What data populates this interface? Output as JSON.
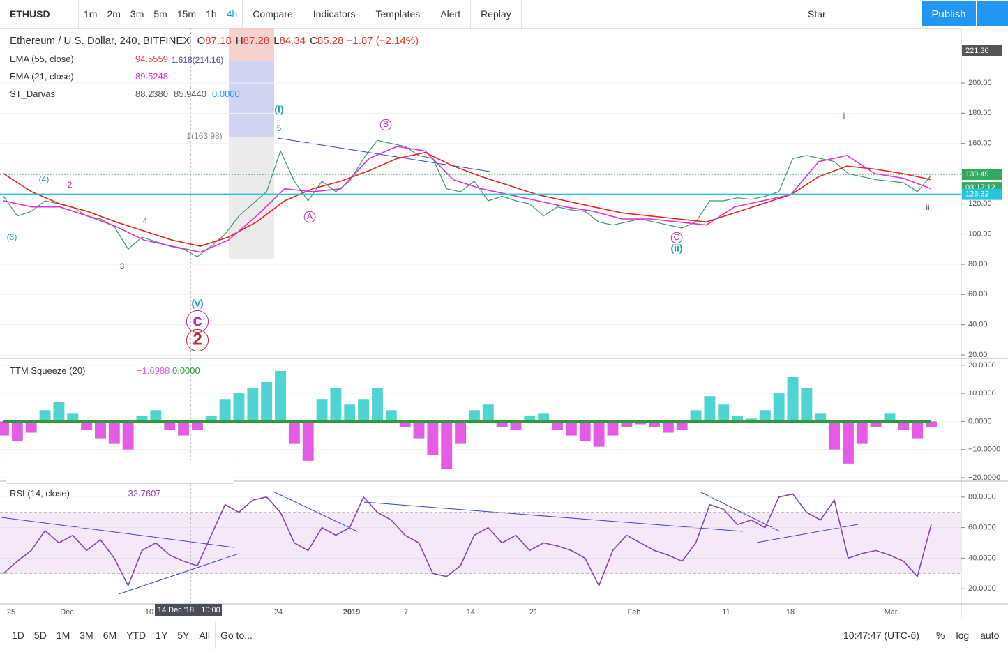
{
  "toolbar": {
    "symbol": "ETHUSD",
    "intervals": [
      "1m",
      "2m",
      "3m",
      "5m",
      "15m",
      "1h",
      "4h"
    ],
    "buttons": [
      "Compare",
      "Indicators",
      "Templates",
      "Alert",
      "Replay"
    ],
    "star": "Star",
    "publish": "Publish"
  },
  "legend": {
    "title": "Ethereum / U.S. Dollar, 240, BITFINEX",
    "ohlc": [
      {
        "k": "O",
        "v": "87.18"
      },
      {
        "k": "H",
        "v": "87.28"
      },
      {
        "k": "L",
        "v": "84.34"
      },
      {
        "k": "C",
        "v": "85.28"
      }
    ],
    "change": "−1.87 (−2.14%)",
    "studies": [
      {
        "name": "EMA (55, close)",
        "values": [
          "94.5559"
        ]
      },
      {
        "name": "EMA (21, close)",
        "values": [
          "89.5248"
        ]
      },
      {
        "name": "ST_Darvas",
        "values": [
          "88.2380",
          "85.9440",
          "0.0000"
        ]
      }
    ]
  },
  "chart_data": [
    {
      "type": "line",
      "ylim": [
        18.15,
        236.46
      ],
      "yticks": [
        {
          "value": 200,
          "label": "200.00"
        },
        {
          "value": 180,
          "label": "180.00"
        },
        {
          "value": 160,
          "label": "160.00"
        },
        {
          "value": 140,
          "label": "140.00"
        },
        {
          "value": 120,
          "label": "120.00"
        },
        {
          "value": 100,
          "label": "100.00"
        },
        {
          "value": 80,
          "label": "80.00"
        },
        {
          "value": 60,
          "label": "60.00"
        },
        {
          "value": 40,
          "label": "40.00"
        },
        {
          "value": 20,
          "label": "20.00"
        }
      ],
      "series": [
        {
          "name": "ETHUSD",
          "color": "#3a9a6a",
          "values": [
            125,
            112,
            115,
            122,
            120,
            118,
            112,
            110,
            105,
            90,
            98,
            95,
            92,
            90,
            85,
            92,
            100,
            112,
            120,
            128,
            155,
            135,
            122,
            135,
            128,
            135,
            150,
            162,
            160,
            158,
            152,
            150,
            130,
            128,
            135,
            122,
            125,
            122,
            120,
            112,
            118,
            116,
            115,
            108,
            106,
            108,
            110,
            108,
            106,
            104,
            108,
            122,
            122,
            124,
            123,
            125,
            128,
            150,
            152,
            150,
            148,
            140,
            138,
            136,
            135,
            134,
            128,
            139
          ]
        },
        {
          "name": "EMA (55, close)",
          "color": "#e8221c",
          "values": [
            140,
            128,
            120,
            115,
            108,
            102,
            96,
            92,
            98,
            108,
            122,
            130,
            135,
            142,
            150,
            154,
            145,
            138,
            132,
            126,
            122,
            118,
            114,
            112,
            110,
            108,
            114,
            120,
            126,
            138,
            145,
            143,
            140,
            136
          ]
        },
        {
          "name": "EMA (21, close)",
          "color": "#e22fd6",
          "values": [
            122,
            118,
            118,
            112,
            105,
            96,
            92,
            88,
            96,
            112,
            130,
            128,
            130,
            150,
            158,
            155,
            136,
            130,
            126,
            122,
            118,
            115,
            110,
            110,
            108,
            106,
            118,
            122,
            126,
            148,
            152,
            140,
            137,
            130
          ]
        }
      ],
      "badges": [
        {
          "value": 221.3,
          "label": "221.30",
          "color": "#555"
        },
        {
          "value": 139.49,
          "label": "139.49",
          "color": "#33a861"
        },
        {
          "label": "03:12:12",
          "color": "#33a861"
        },
        {
          "value": 126.32,
          "label": "126.32",
          "color": "#26c6da"
        }
      ],
      "annotations": [
        {
          "text": "(i)",
          "color": "#1aa3a3"
        },
        {
          "text": "5",
          "color": "#1aa3a3"
        },
        {
          "text": "B",
          "color": "#b030b0"
        },
        {
          "text": "A",
          "color": "#b030b0"
        },
        {
          "text": "i",
          "color": "#9c27b0"
        },
        {
          "text": "ii",
          "color": "#9c27b0"
        },
        {
          "text": "C",
          "color": "#b030b0"
        },
        {
          "text": "(ii)",
          "color": "#1aa3a3"
        },
        {
          "text": "(v)",
          "color": "#1aa3a3"
        },
        {
          "text": "c",
          "color": "#b030b0"
        },
        {
          "text": "2",
          "color": "#c62828"
        },
        {
          "text": "1(163.98)",
          "color": "#888"
        },
        {
          "text": "1.618(214.16)",
          "color": "#4a4aa0"
        },
        {
          "text": "(4)",
          "color": "#1aa3a3"
        },
        {
          "text": "(3)",
          "color": "#1aa3a3"
        },
        {
          "text": "3",
          "color": "#b030b0"
        },
        {
          "text": "4",
          "color": "#b030b0"
        },
        {
          "text": "2",
          "color": "#b030b0"
        }
      ]
    },
    {
      "type": "bar",
      "title": "TTM Squeeze (20)",
      "legend_values": [
        "−1.6988",
        "0.0000"
      ],
      "ylim": [
        -21,
        22.2
      ],
      "yticks": [
        {
          "value": 20,
          "label": "20.0000"
        },
        {
          "value": 10,
          "label": "10.0000"
        },
        {
          "value": 0,
          "label": "0.0000"
        },
        {
          "value": -10,
          "label": "−10.0000"
        },
        {
          "value": -20,
          "label": "−20.0000"
        }
      ],
      "colors": {
        "up": "#4fd3d3",
        "down": "#e35ce3",
        "zero": "#2e9a3a"
      },
      "values": [
        -5,
        -7,
        -4,
        4,
        7,
        3,
        -3,
        -6,
        -8,
        -10,
        2,
        4,
        -3,
        -5,
        -3,
        2,
        8,
        10,
        12,
        14,
        18,
        -8,
        -14,
        8,
        12,
        6,
        8,
        12,
        4,
        -2,
        -6,
        -12,
        -17,
        -8,
        4,
        6,
        -2,
        -3,
        2,
        3,
        -3,
        -5,
        -7,
        -9,
        -5,
        -2,
        -1,
        -2,
        -4,
        -3,
        4,
        9,
        6,
        2,
        1,
        4,
        10,
        16,
        12,
        3,
        -10,
        -15,
        -8,
        -2,
        3,
        -3,
        -6,
        -2
      ]
    },
    {
      "type": "line",
      "title": "RSI (14, close)",
      "legend_values": [
        "32.7607"
      ],
      "ylim": [
        10.5,
        89.5
      ],
      "band": [
        30,
        70
      ],
      "yticks": [
        {
          "value": 80,
          "label": "80.0000"
        },
        {
          "value": 60,
          "label": "60.0000"
        },
        {
          "value": 40,
          "label": "40.0000"
        },
        {
          "value": 20,
          "label": "20.0000"
        }
      ],
      "series": [
        {
          "name": "RSI",
          "color": "#8e3fb0",
          "values": [
            30,
            38,
            45,
            58,
            50,
            55,
            45,
            52,
            40,
            22,
            45,
            50,
            42,
            38,
            35,
            55,
            75,
            70,
            78,
            80,
            70,
            50,
            45,
            60,
            55,
            60,
            80,
            70,
            65,
            55,
            50,
            30,
            28,
            35,
            55,
            60,
            50,
            55,
            45,
            50,
            48,
            45,
            40,
            22,
            45,
            55,
            50,
            45,
            42,
            38,
            50,
            75,
            72,
            62,
            65,
            60,
            80,
            82,
            70,
            65,
            78,
            40,
            43,
            45,
            42,
            38,
            28,
            62
          ]
        }
      ]
    }
  ],
  "time_axis": {
    "labels": [
      "25",
      "Dec",
      "10",
      "24",
      "2019",
      "7",
      "14",
      "21",
      "Feb",
      "11",
      "18",
      "Mar"
    ],
    "crosshair": [
      "14 Dec '18",
      "10:00"
    ]
  },
  "bottom_bar": {
    "ranges": [
      "1D",
      "5D",
      "1M",
      "3M",
      "6M",
      "YTD",
      "1Y",
      "5Y",
      "All"
    ],
    "goto": "Go to...",
    "clock": "10:47:47 (UTC-6)",
    "options": [
      "%",
      "log",
      "auto"
    ]
  }
}
